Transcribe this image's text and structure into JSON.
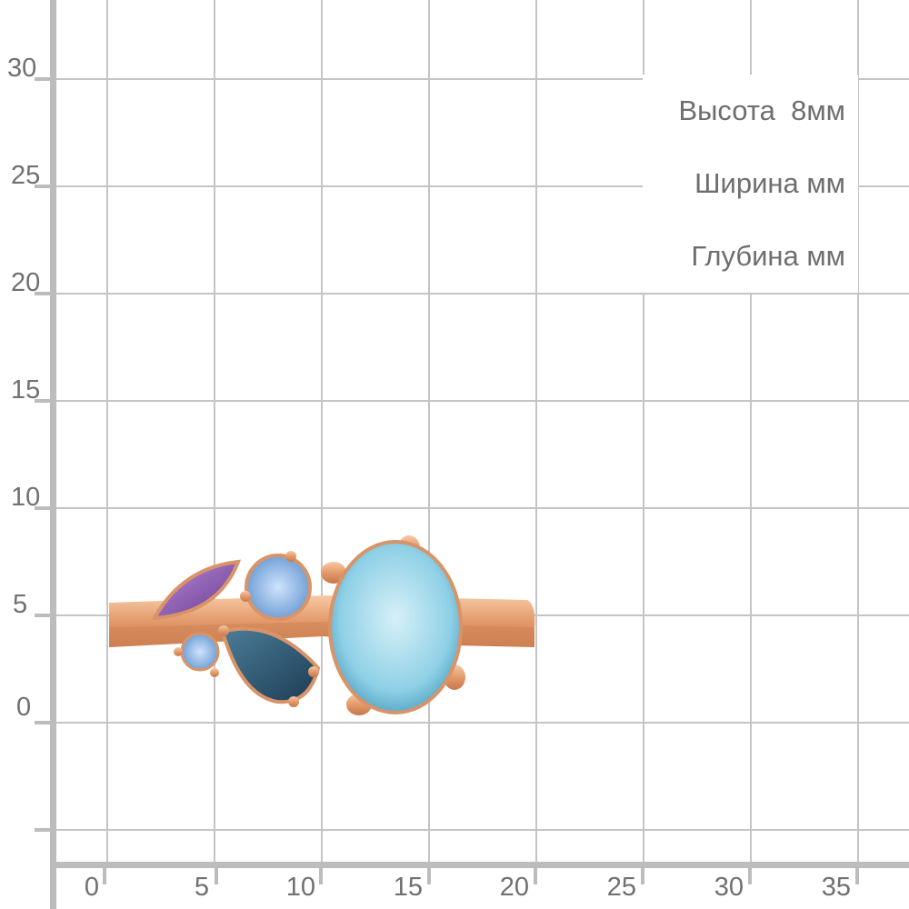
{
  "y_axis": {
    "ticks": [
      "30",
      "25",
      "20",
      "15",
      "10",
      "5",
      "0"
    ]
  },
  "x_axis": {
    "ticks": [
      "0",
      "5",
      "10",
      "15",
      "20",
      "25",
      "30",
      "35"
    ]
  },
  "dimensions": {
    "height": "Высота  8мм",
    "width": "Ширина мм",
    "depth": "Глубина мм"
  },
  "colors": {
    "grid": "#c4c4c4",
    "axis": "#bcbcbc",
    "gold": "#e8a77a",
    "amethyst": "#8a5fb0",
    "topaz_sky": "#9fd6e8",
    "topaz_london": "#2c5570",
    "topaz_light": "#8ebbe6"
  }
}
